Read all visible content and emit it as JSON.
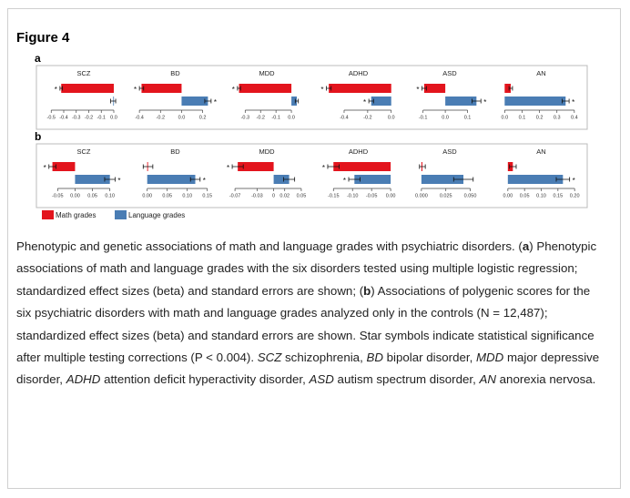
{
  "figure_title": "Figure 4",
  "panel_labels": [
    "a",
    "b"
  ],
  "legend": [
    {
      "name": "Math grades",
      "color": "#e3141d"
    },
    {
      "name": "Language grades",
      "color": "#4a7db4"
    }
  ],
  "chart_data": [
    {
      "type": "bar",
      "orientation": "horizontal",
      "title": "SCZ",
      "xlim": [
        -0.56,
        0.08
      ],
      "xticks": [
        -0.5,
        -0.4,
        -0.3,
        -0.2,
        -0.1,
        {
          "value": 0,
          "label": "0.0"
        }
      ],
      "series": [
        {
          "values": [
            -0.42
          ],
          "errors": [
            0.01
          ],
          "marker": "*"
        },
        {
          "values": [
            -0.005
          ],
          "errors": [
            0.02
          ]
        }
      ]
    },
    {
      "type": "bar",
      "orientation": "horizontal",
      "title": "BD",
      "xlim": [
        -0.44,
        0.32
      ],
      "xticks": [
        -0.4,
        -0.2,
        {
          "value": 0,
          "label": "0.0"
        },
        0.2
      ],
      "series": [
        {
          "values": [
            -0.38
          ],
          "errors": [
            0.02
          ],
          "marker": "*"
        },
        {
          "values": [
            0.25
          ],
          "errors": [
            0.03
          ],
          "marker": "*"
        }
      ]
    },
    {
      "type": "bar",
      "orientation": "horizontal",
      "title": "MDD",
      "xlim": [
        -0.42,
        0.1
      ],
      "xticks": [
        -0.3,
        -0.2,
        -0.1,
        {
          "value": 0,
          "label": "0.0"
        }
      ],
      "series": [
        {
          "values": [
            -0.34
          ],
          "errors": [
            0.01
          ],
          "marker": "*"
        },
        {
          "values": [
            0.035
          ],
          "errors": [
            0.01
          ]
        }
      ]
    },
    {
      "type": "bar",
      "orientation": "horizontal",
      "title": "ADHD",
      "xlim": [
        -0.62,
        0.06
      ],
      "xticks": [
        -0.4,
        -0.2,
        {
          "value": 0,
          "label": "0.0"
        }
      ],
      "series": [
        {
          "values": [
            -0.53
          ],
          "errors": [
            0.02
          ],
          "marker": "*"
        },
        {
          "values": [
            -0.17
          ],
          "errors": [
            0.02
          ],
          "marker": "*"
        }
      ]
    },
    {
      "type": "bar",
      "orientation": "horizontal",
      "title": "ASD",
      "xlim": [
        -0.16,
        0.2
      ],
      "xticks": [
        -0.1,
        {
          "value": 0,
          "label": "0.0"
        },
        0.1
      ],
      "series": [
        {
          "values": [
            -0.095
          ],
          "errors": [
            0.01
          ],
          "marker": "*"
        },
        {
          "values": [
            0.14
          ],
          "errors": [
            0.02
          ],
          "marker": "*"
        }
      ]
    },
    {
      "type": "bar",
      "orientation": "horizontal",
      "title": "AN",
      "xlim": [
        -0.02,
        0.44
      ],
      "xticks": [
        {
          "value": 0,
          "label": "0.0"
        },
        0.1,
        0.2,
        0.3,
        0.4
      ],
      "series": [
        {
          "values": [
            0.035
          ],
          "errors": [
            0.01
          ]
        },
        {
          "values": [
            0.35
          ],
          "errors": [
            0.02
          ],
          "marker": "*"
        }
      ]
    },
    {
      "type": "bar",
      "orientation": "horizontal",
      "title": "SCZ",
      "xlim": [
        -0.09,
        0.14
      ],
      "xticks": [
        -0.05,
        {
          "value": 0,
          "label": "0.00"
        },
        0.05,
        {
          "value": 0.1,
          "label": "0.10"
        }
      ],
      "series": [
        {
          "values": [
            -0.065
          ],
          "errors": [
            0.01
          ],
          "marker": "*"
        },
        {
          "values": [
            0.1
          ],
          "errors": [
            0.015
          ],
          "marker": "*"
        }
      ]
    },
    {
      "type": "bar",
      "orientation": "horizontal",
      "title": "BD",
      "xlim": [
        -0.03,
        0.17
      ],
      "xticks": [
        {
          "value": 0,
          "label": "0.00"
        },
        0.05,
        {
          "value": 0.1,
          "label": "0.10"
        },
        0.15
      ],
      "series": [
        {
          "values": [
            0.002
          ],
          "errors": [
            0.012
          ]
        },
        {
          "values": [
            0.12
          ],
          "errors": [
            0.012
          ],
          "marker": "*"
        }
      ]
    },
    {
      "type": "bar",
      "orientation": "horizontal",
      "title": "MDD",
      "xlim": [
        -0.085,
        0.06
      ],
      "xticks": [
        -0.07,
        -0.03,
        0,
        0.02,
        0.05
      ],
      "series": [
        {
          "values": [
            -0.065
          ],
          "errors": [
            0.01
          ],
          "marker": "*"
        },
        {
          "values": [
            0.028
          ],
          "errors": [
            0.01
          ]
        }
      ]
    },
    {
      "type": "bar",
      "orientation": "horizontal",
      "title": "ADHD",
      "xlim": [
        -0.19,
        0.02
      ],
      "xticks": [
        -0.15,
        {
          "value": -0.1,
          "label": "-0.10"
        },
        -0.05,
        {
          "value": 0,
          "label": "0.00"
        }
      ],
      "series": [
        {
          "values": [
            -0.15
          ],
          "errors": [
            0.015
          ],
          "marker": "*"
        },
        {
          "values": [
            -0.095
          ],
          "errors": [
            0.015
          ],
          "marker": "*"
        }
      ]
    },
    {
      "type": "bar",
      "orientation": "horizontal",
      "title": "ASD",
      "xlim": [
        -0.012,
        0.07
      ],
      "xticks": [
        {
          "value": 0,
          "label": "0.000"
        },
        0.025,
        {
          "value": 0.05,
          "label": "0.050"
        }
      ],
      "series": [
        {
          "values": [
            0.001
          ],
          "errors": [
            0.003
          ]
        },
        {
          "values": [
            0.043
          ],
          "errors": [
            0.01
          ]
        }
      ]
    },
    {
      "type": "bar",
      "orientation": "horizontal",
      "title": "AN",
      "xlim": [
        -0.02,
        0.22
      ],
      "xticks": [
        {
          "value": 0,
          "label": "0.00"
        },
        0.05,
        {
          "value": 0.1,
          "label": "0.10"
        },
        0.15,
        {
          "value": 0.2,
          "label": "0.20"
        }
      ],
      "series": [
        {
          "values": [
            0.015
          ],
          "errors": [
            0.01
          ]
        },
        {
          "values": [
            0.165
          ],
          "errors": [
            0.02
          ],
          "marker": "*"
        }
      ]
    }
  ],
  "caption": [
    "Phenotypic and genetic associations of math and language grades with psychiatric disorders. (",
    "a",
    ") Phenotypic associations of math and language grades with the six disorders tested using multiple logistic regression; standardized effect sizes (beta) and standard errors are shown; (",
    "b",
    ") Associations of polygenic scores for the six psychiatric disorders with math and language grades analyzed only in the controls (N = 12,487); standardized effect sizes (beta) and standard errors are shown. Star symbols indicate statistical significance after multiple testing corrections (P < 0.004). ",
    "SCZ",
    " schizophrenia, ",
    "BD",
    " bipolar disorder, ",
    "MDD",
    " major depressive disorder, ",
    "ADHD",
    " attention deficit hyperactivity disorder, ",
    "ASD",
    " autism spectrum disorder, ",
    "AN",
    " anorexia nervosa."
  ]
}
